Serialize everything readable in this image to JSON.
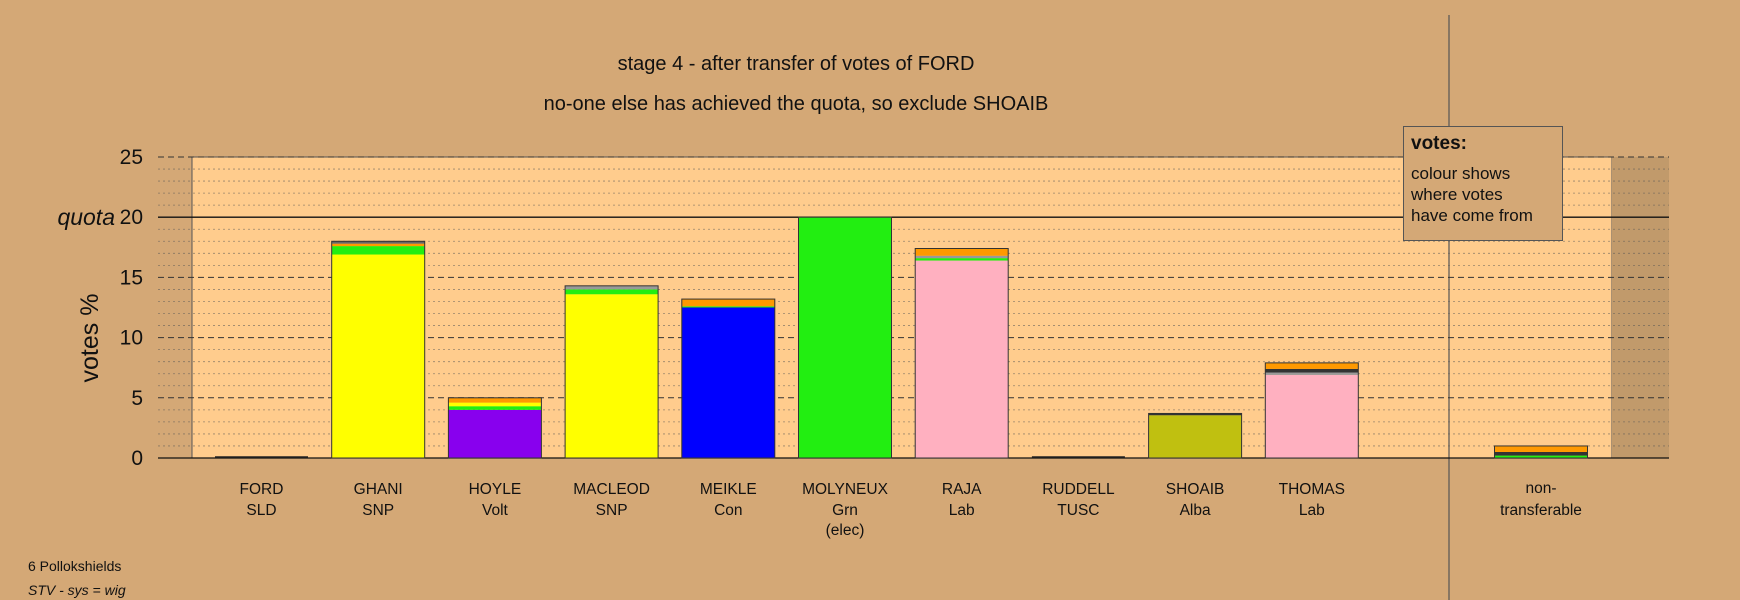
{
  "chart_data": {
    "type": "bar",
    "stacked": true,
    "title": "stage 4 - after transfer of votes of FORD",
    "subtitle": "no-one else has achieved the quota, so exclude SHOAIB",
    "ylabel": "votes %",
    "ylim": [
      0,
      25
    ],
    "yticks": [
      0,
      5,
      10,
      15,
      20,
      25
    ],
    "quota_label": "quota",
    "quota_value": 20,
    "grid": "dashed major every 5, dotted minor every 1",
    "categories": [
      {
        "name": "FORD",
        "party": "SLD",
        "note": ""
      },
      {
        "name": "GHANI",
        "party": "SNP",
        "note": ""
      },
      {
        "name": "HOYLE",
        "party": "Volt",
        "note": ""
      },
      {
        "name": "MACLEOD",
        "party": "SNP",
        "note": ""
      },
      {
        "name": "MEIKLE",
        "party": "Con",
        "note": ""
      },
      {
        "name": "MOLYNEUX",
        "party": "Grn",
        "note": "(elec)"
      },
      {
        "name": "RAJA",
        "party": "Lab",
        "note": ""
      },
      {
        "name": "RUDDELL",
        "party": "TUSC",
        "note": ""
      },
      {
        "name": "SHOAIB",
        "party": "Alba",
        "note": ""
      },
      {
        "name": "THOMAS",
        "party": "Lab",
        "note": ""
      }
    ],
    "extra_category": {
      "line1": "non-",
      "line2": "transferable"
    },
    "stacks": [
      [],
      [
        {
          "value": 16.9,
          "color": "#ffff00"
        },
        {
          "value": 0.7,
          "color": "#22ee11"
        },
        {
          "value": 0.2,
          "color": "#ff9900"
        },
        {
          "value": 0.2,
          "color": "#666666"
        }
      ],
      [
        {
          "value": 4.0,
          "color": "#8800ee"
        },
        {
          "value": 0.3,
          "color": "#22ee11"
        },
        {
          "value": 0.3,
          "color": "#ffff00"
        },
        {
          "value": 0.4,
          "color": "#ff9900"
        }
      ],
      [
        {
          "value": 13.6,
          "color": "#ffff00"
        },
        {
          "value": 0.4,
          "color": "#22ee11"
        },
        {
          "value": 0.3,
          "color": "#999999"
        }
      ],
      [
        {
          "value": 12.5,
          "color": "#0000ff"
        },
        {
          "value": 0.1,
          "color": "#22ee11"
        },
        {
          "value": 0.6,
          "color": "#ff9900"
        }
      ],
      [
        {
          "value": 20.0,
          "color": "#22ee11"
        }
      ],
      [
        {
          "value": 16.4,
          "color": "#ffb0c0"
        },
        {
          "value": 0.2,
          "color": "#22ee11"
        },
        {
          "value": 0.2,
          "color": "#999999"
        },
        {
          "value": 0.6,
          "color": "#ff9900"
        }
      ],
      [],
      [
        {
          "value": 3.55,
          "color": "#c0c010"
        },
        {
          "value": 0.15,
          "color": "#333333"
        }
      ],
      [
        {
          "value": 6.9,
          "color": "#ffb0c0"
        },
        {
          "value": 0.2,
          "color": "#999999"
        },
        {
          "value": 0.3,
          "color": "#333333"
        },
        {
          "value": 0.5,
          "color": "#ff9900"
        }
      ]
    ],
    "extra_stack": [
      {
        "value": 0.2,
        "color": "#22ee11"
      },
      {
        "value": 0.3,
        "color": "#333333"
      },
      {
        "value": 0.5,
        "color": "#ff9900"
      }
    ],
    "colors": {
      "background": "#d4a876",
      "plot": "#ffcc8d"
    }
  },
  "legend": {
    "title": "votes:",
    "line1": "colour shows",
    "line2": "where votes",
    "line3": "have come from"
  },
  "footer": {
    "ward": "6 Pollokshields",
    "system": "STV - sys = wig"
  }
}
